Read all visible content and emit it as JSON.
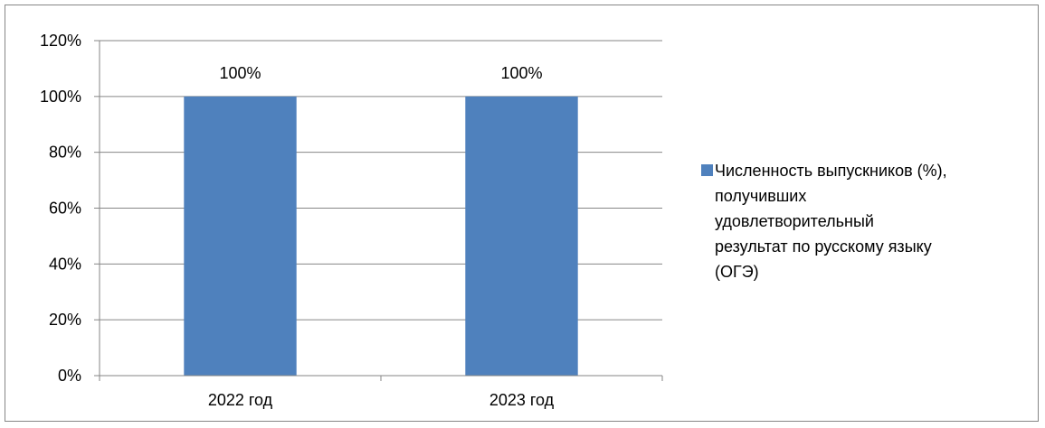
{
  "chart_data": {
    "type": "bar",
    "categories": [
      "2022 год",
      "2023 год"
    ],
    "series": [
      {
        "name": "Численность выпускников (%), получивших удовлетворительный результат по русскому языку (ОГЭ)",
        "values": [
          100,
          100
        ],
        "color": "#4f81bd"
      }
    ],
    "data_labels": [
      "100%",
      "100%"
    ],
    "y_ticks": [
      "0%",
      "20%",
      "40%",
      "60%",
      "80%",
      "100%",
      "120%"
    ],
    "ylim": [
      0,
      120
    ],
    "grid": true,
    "legend_position": "right"
  },
  "legend": {
    "text": "Численность выпускников (%),\nполучивших\nудовлетворительный\nрезультат по русскому языку\n(ОГЭ)"
  }
}
